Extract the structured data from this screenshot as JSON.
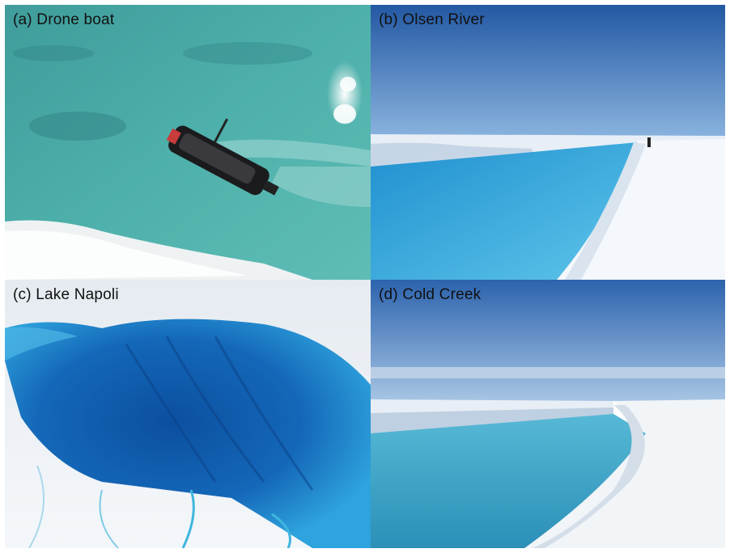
{
  "panels": [
    {
      "label": "(a) Drone boat",
      "subject": "drone-boat"
    },
    {
      "label": "(b) Olsen River",
      "subject": "river"
    },
    {
      "label": "(c) Lake Napoli",
      "subject": "lake"
    },
    {
      "label": "(d) Cold Creek",
      "subject": "creek"
    }
  ],
  "colors": {
    "sea": "#4aa9a6",
    "sky": "#2d5fa8",
    "meltwater": "#2aa4d6",
    "deep_lake": "#0f5aa8",
    "ice": "#e9eef3"
  }
}
